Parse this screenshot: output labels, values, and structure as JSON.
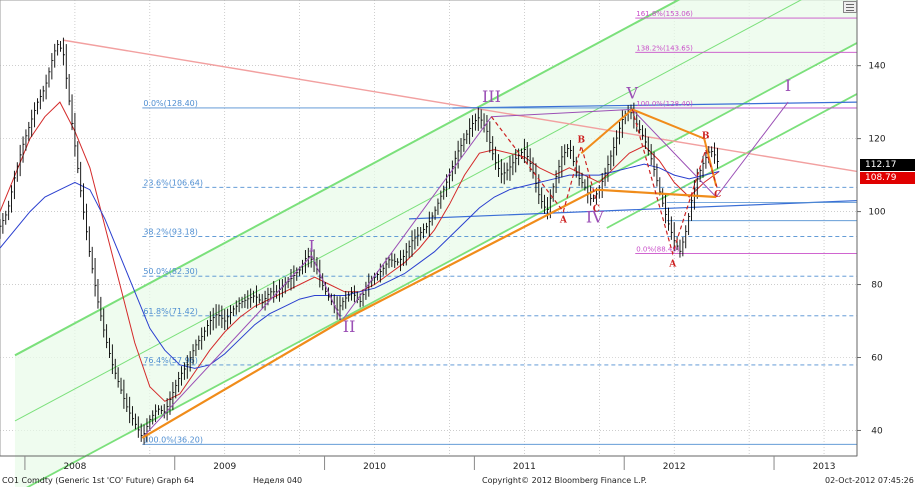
{
  "chart_data": {
    "type": "line",
    "title": "",
    "ylim": [
      33,
      158
    ],
    "xlim": [
      2007.5,
      2013.22
    ],
    "y_ticks": [
      40,
      60,
      80,
      100,
      120,
      140
    ],
    "x_ticks": [
      {
        "label": "2008",
        "pos": 2008.0
      },
      {
        "label": "2009",
        "pos": 2009.0
      },
      {
        "label": "2010",
        "pos": 2010.0
      },
      {
        "label": "2011",
        "pos": 2011.0
      },
      {
        "label": "2012",
        "pos": 2012.0
      },
      {
        "label": "2013",
        "pos": 2013.0
      }
    ],
    "price_series": [
      [
        2007.5,
        96
      ],
      [
        2007.55,
        100
      ],
      [
        2007.6,
        110
      ],
      [
        2007.65,
        118
      ],
      [
        2007.7,
        124
      ],
      [
        2007.75,
        130
      ],
      [
        2007.8,
        134
      ],
      [
        2007.85,
        142
      ],
      [
        2007.88,
        146
      ],
      [
        2007.92,
        144
      ],
      [
        2007.95,
        134
      ],
      [
        2008.0,
        118
      ],
      [
        2008.05,
        102
      ],
      [
        2008.1,
        88
      ],
      [
        2008.15,
        76
      ],
      [
        2008.2,
        66
      ],
      [
        2008.25,
        58
      ],
      [
        2008.3,
        52
      ],
      [
        2008.35,
        46
      ],
      [
        2008.4,
        42
      ],
      [
        2008.45,
        38
      ],
      [
        2008.5,
        43
      ],
      [
        2008.55,
        46
      ],
      [
        2008.6,
        45
      ],
      [
        2008.65,
        50
      ],
      [
        2008.7,
        55
      ],
      [
        2008.75,
        58
      ],
      [
        2008.8,
        63
      ],
      [
        2008.85,
        66
      ],
      [
        2008.9,
        70
      ],
      [
        2008.95,
        72
      ],
      [
        2009.0,
        70
      ],
      [
        2009.05,
        73
      ],
      [
        2009.1,
        75
      ],
      [
        2009.15,
        76
      ],
      [
        2009.2,
        77
      ],
      [
        2009.25,
        75
      ],
      [
        2009.3,
        78
      ],
      [
        2009.35,
        78
      ],
      [
        2009.4,
        80
      ],
      [
        2009.45,
        82
      ],
      [
        2009.5,
        84
      ],
      [
        2009.55,
        88
      ],
      [
        2009.6,
        86
      ],
      [
        2009.65,
        80
      ],
      [
        2009.7,
        76
      ],
      [
        2009.75,
        73
      ],
      [
        2009.8,
        76
      ],
      [
        2009.85,
        78
      ],
      [
        2009.9,
        75
      ],
      [
        2009.95,
        80
      ],
      [
        2010.0,
        82
      ],
      [
        2010.05,
        84
      ],
      [
        2010.1,
        87
      ],
      [
        2010.15,
        86
      ],
      [
        2010.2,
        88
      ],
      [
        2010.25,
        92
      ],
      [
        2010.3,
        94
      ],
      [
        2010.35,
        96
      ],
      [
        2010.4,
        100
      ],
      [
        2010.45,
        105
      ],
      [
        2010.5,
        110
      ],
      [
        2010.55,
        116
      ],
      [
        2010.6,
        120
      ],
      [
        2010.65,
        124
      ],
      [
        2010.7,
        126
      ],
      [
        2010.75,
        122
      ],
      [
        2010.8,
        114
      ],
      [
        2010.85,
        110
      ],
      [
        2010.9,
        112
      ],
      [
        2010.95,
        115
      ],
      [
        2011.0,
        117
      ],
      [
        2011.05,
        112
      ],
      [
        2011.1,
        104
      ],
      [
        2011.15,
        100
      ],
      [
        2011.2,
        108
      ],
      [
        2011.25,
        115
      ],
      [
        2011.3,
        118
      ],
      [
        2011.35,
        110
      ],
      [
        2011.4,
        107
      ],
      [
        2011.45,
        103
      ],
      [
        2011.5,
        106
      ],
      [
        2011.55,
        112
      ],
      [
        2011.6,
        118
      ],
      [
        2011.65,
        125
      ],
      [
        2011.7,
        128
      ],
      [
        2011.75,
        124
      ],
      [
        2011.8,
        120
      ],
      [
        2011.85,
        114
      ],
      [
        2011.9,
        106
      ],
      [
        2011.95,
        98
      ],
      [
        2012.0,
        92
      ],
      [
        2012.04,
        89
      ],
      [
        2012.08,
        95
      ],
      [
        2012.12,
        104
      ],
      [
        2012.16,
        110
      ],
      [
        2012.2,
        114
      ],
      [
        2012.24,
        117
      ],
      [
        2012.28,
        115
      ],
      [
        2012.3,
        112
      ]
    ],
    "ma_red": [
      [
        2007.5,
        100
      ],
      [
        2007.6,
        110
      ],
      [
        2007.7,
        120
      ],
      [
        2007.8,
        126
      ],
      [
        2007.9,
        130
      ],
      [
        2008.0,
        122
      ],
      [
        2008.1,
        112
      ],
      [
        2008.2,
        96
      ],
      [
        2008.3,
        80
      ],
      [
        2008.4,
        64
      ],
      [
        2008.5,
        52
      ],
      [
        2008.6,
        48
      ],
      [
        2008.7,
        50
      ],
      [
        2008.8,
        56
      ],
      [
        2008.9,
        62
      ],
      [
        2009.0,
        67
      ],
      [
        2009.1,
        71
      ],
      [
        2009.2,
        74
      ],
      [
        2009.3,
        76
      ],
      [
        2009.4,
        78
      ],
      [
        2009.5,
        80
      ],
      [
        2009.6,
        82
      ],
      [
        2009.7,
        80
      ],
      [
        2009.8,
        78
      ],
      [
        2009.9,
        78
      ],
      [
        2010.0,
        80
      ],
      [
        2010.1,
        83
      ],
      [
        2010.2,
        86
      ],
      [
        2010.3,
        90
      ],
      [
        2010.4,
        95
      ],
      [
        2010.5,
        102
      ],
      [
        2010.6,
        110
      ],
      [
        2010.7,
        116
      ],
      [
        2010.8,
        117
      ],
      [
        2010.9,
        116
      ],
      [
        2011.0,
        115
      ],
      [
        2011.1,
        112
      ],
      [
        2011.2,
        110
      ],
      [
        2011.3,
        112
      ],
      [
        2011.4,
        110
      ],
      [
        2011.5,
        108
      ],
      [
        2011.6,
        112
      ],
      [
        2011.7,
        116
      ],
      [
        2011.8,
        118
      ],
      [
        2011.9,
        114
      ],
      [
        2012.0,
        108
      ],
      [
        2012.1,
        104
      ],
      [
        2012.2,
        108
      ],
      [
        2012.3,
        111
      ]
    ],
    "ma_blue": [
      [
        2007.5,
        90
      ],
      [
        2007.6,
        95
      ],
      [
        2007.7,
        100
      ],
      [
        2007.8,
        104
      ],
      [
        2007.9,
        106
      ],
      [
        2008.0,
        108
      ],
      [
        2008.1,
        106
      ],
      [
        2008.2,
        98
      ],
      [
        2008.3,
        88
      ],
      [
        2008.4,
        78
      ],
      [
        2008.5,
        68
      ],
      [
        2008.6,
        62
      ],
      [
        2008.7,
        58
      ],
      [
        2008.8,
        57
      ],
      [
        2008.9,
        58
      ],
      [
        2009.0,
        61
      ],
      [
        2009.1,
        65
      ],
      [
        2009.2,
        69
      ],
      [
        2009.3,
        72
      ],
      [
        2009.4,
        74
      ],
      [
        2009.5,
        76
      ],
      [
        2009.6,
        77
      ],
      [
        2009.7,
        77
      ],
      [
        2009.8,
        77
      ],
      [
        2009.9,
        78
      ],
      [
        2010.0,
        79
      ],
      [
        2010.1,
        81
      ],
      [
        2010.2,
        83
      ],
      [
        2010.3,
        86
      ],
      [
        2010.4,
        89
      ],
      [
        2010.5,
        93
      ],
      [
        2010.6,
        97
      ],
      [
        2010.7,
        101
      ],
      [
        2010.8,
        104
      ],
      [
        2010.9,
        106
      ],
      [
        2011.0,
        107
      ],
      [
        2011.1,
        108
      ],
      [
        2011.2,
        109
      ],
      [
        2011.3,
        110
      ],
      [
        2011.4,
        110
      ],
      [
        2011.5,
        110
      ],
      [
        2011.6,
        111
      ],
      [
        2011.7,
        112
      ],
      [
        2011.8,
        113
      ],
      [
        2011.9,
        112
      ],
      [
        2012.0,
        110
      ],
      [
        2012.1,
        109
      ],
      [
        2012.2,
        110
      ],
      [
        2012.3,
        111
      ]
    ],
    "fib_levels": [
      {
        "label": "0.0%(128.40)",
        "value": 128.4
      },
      {
        "label": "23.6%(106.64)",
        "value": 106.64
      },
      {
        "label": "38.2%(93.18)",
        "value": 93.18
      },
      {
        "label": "50.0%(82.30)",
        "value": 82.3
      },
      {
        "label": "61.8%(71.42)",
        "value": 71.42
      },
      {
        "label": "76.4%(57.96)",
        "value": 57.96
      },
      {
        "label": "100.0%(36.20)",
        "value": 36.2
      }
    ],
    "fib_ext": [
      {
        "label": "161.8%(153.06)",
        "value": 153.06
      },
      {
        "label": "138.2%(143.65)",
        "value": 143.65
      },
      {
        "label": "100.0%(128.40)",
        "value": 128.4
      },
      {
        "label": "0.0%(88.49)",
        "value": 88.49
      }
    ],
    "wave_labels": [
      {
        "text": "I",
        "x": 2009.58,
        "y": 89,
        "color": "#9b4fb5"
      },
      {
        "text": "II",
        "x": 2009.83,
        "y": 67,
        "color": "#9b4fb5"
      },
      {
        "text": "III",
        "x": 2010.78,
        "y": 130,
        "color": "#9b4fb5"
      },
      {
        "text": "IV",
        "x": 2011.47,
        "y": 97,
        "color": "#9b4fb5"
      },
      {
        "text": "V",
        "x": 2011.72,
        "y": 131,
        "color": "#9b4fb5"
      },
      {
        "text": "I",
        "x": 2012.76,
        "y": 133,
        "color": "#9b4fb5"
      },
      {
        "text": "A",
        "x": 2011.26,
        "y": 97,
        "color": "#cc1f1f"
      },
      {
        "text": "B",
        "x": 2011.38,
        "y": 119,
        "color": "#cc1f1f"
      },
      {
        "text": "C",
        "x": 2011.48,
        "y": 100,
        "color": "#cc1f1f"
      },
      {
        "text": "A",
        "x": 2011.99,
        "y": 85,
        "color": "#cc1f1f"
      },
      {
        "text": "B",
        "x": 2012.21,
        "y": 120,
        "color": "#cc1f1f"
      },
      {
        "text": "C",
        "x": 2012.29,
        "y": 104,
        "color": "#cc1f1f"
      }
    ],
    "current_price": "112.17",
    "second_price": "108.79",
    "x_label": "",
    "y_label": ""
  },
  "footer": {
    "left": "CO1 Comdty (Generic 1st 'CO' Future) Graph 64",
    "mid": "Неделя 040",
    "copyright": "Copyright© 2012 Bloomberg Finance L.P.",
    "timestamp": "02-Oct-2012 07:45:26"
  },
  "colors": {
    "grid": "#b0b0b0",
    "price": "#000000",
    "ma_red": "#d42a2a",
    "ma_blue": "#2a3fcf",
    "channel": "#7be07b",
    "fib": "#4f8ed1",
    "ext": "#c94fc9",
    "wave": "#9b4fb5",
    "orange": "#f08c1a",
    "trend_pink": "#f2a0a0",
    "price_box_black": "#000000",
    "price_box_red": "#e00000"
  },
  "icon": "settings-icon"
}
